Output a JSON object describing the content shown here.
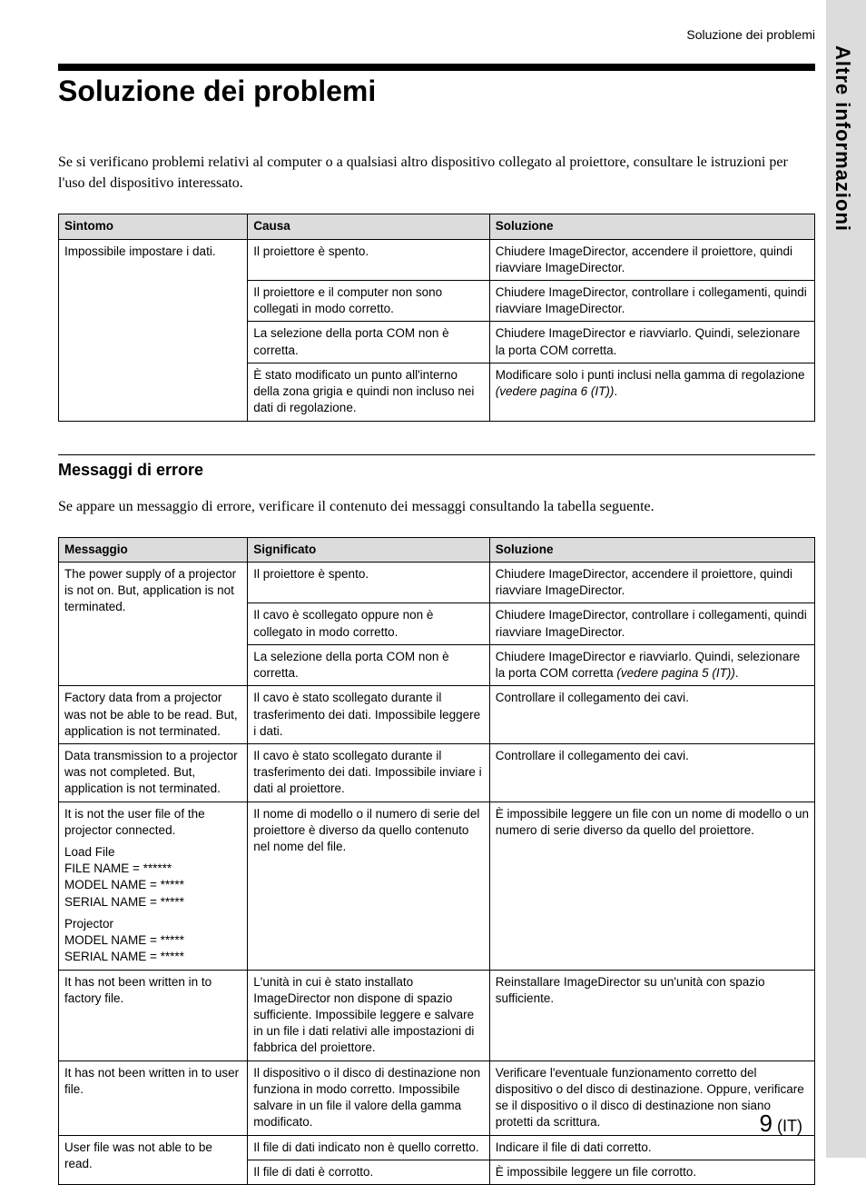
{
  "running_head": "Soluzione dei problemi",
  "side_tab": "Altre informazioni",
  "main_title": "Soluzione dei problemi",
  "intro": "Se si verificano problemi relativi al computer o a qualsiasi altro dispositivo collegato al proiettore, consultare le istruzioni per l'uso del dispositivo interessato.",
  "table1": {
    "headers": {
      "a": "Sintomo",
      "b": "Causa",
      "c": "Soluzione"
    },
    "r1": {
      "a": "Impossibile impostare i dati.",
      "b": "Il proiettore è spento.",
      "c": "Chiudere ImageDirector, accendere il proiettore, quindi riavviare ImageDirector."
    },
    "r2": {
      "b": "Il proiettore e il computer non sono collegati in modo corretto.",
      "c": "Chiudere ImageDirector, controllare i collegamenti, quindi riavviare ImageDirector."
    },
    "r3": {
      "b": "La selezione della porta COM non è corretta.",
      "c": "Chiudere ImageDirector e riavviarlo. Quindi, selezionare la porta COM corretta."
    },
    "r4": {
      "b": "È stato modificato un punto all'interno della zona grigia e quindi non incluso nei dati di regolazione.",
      "c_pre": "Modificare solo i punti inclusi nella gamma di regolazione ",
      "c_it": "(vedere pagina 6 (IT))",
      "c_post": "."
    }
  },
  "sub_title": "Messaggi di errore",
  "sub_intro": "Se appare un messaggio di errore, verificare il contenuto dei messaggi consultando la tabella seguente.",
  "table2": {
    "headers": {
      "a": "Messaggio",
      "b": "Significato",
      "c": "Soluzione"
    },
    "r1": {
      "a": "The power supply of a projector is not on. But, application is not terminated.",
      "b": "Il proiettore è spento.",
      "c": "Chiudere ImageDirector, accendere il proiettore, quindi riavviare ImageDirector."
    },
    "r2": {
      "b": "Il cavo è scollegato oppure non è collegato in modo corretto.",
      "c": "Chiudere ImageDirector, controllare i collegamenti, quindi riavviare ImageDirector."
    },
    "r3": {
      "b": "La selezione della porta COM non è corretta.",
      "c_pre": "Chiudere ImageDirector e riavviarlo. Quindi, selezionare la porta COM corretta ",
      "c_it": "(vedere pagina 5 (IT))",
      "c_post": "."
    },
    "r4": {
      "a": "Factory data from a projector was not be able to be read. But, application is not terminated.",
      "b": "Il cavo è stato scollegato durante il trasferimento dei dati. Impossibile leggere i dati.",
      "c": "Controllare il collegamento dei cavi."
    },
    "r5": {
      "a": "Data transmission to a projector was not completed. But, application is not terminated.",
      "b": "Il cavo è stato scollegato durante il trasferimento dei dati. Impossibile inviare i dati al proiettore.",
      "c": "Controllare il collegamento dei cavi."
    },
    "r6": {
      "a_p1": "It is not the user file of the projector connected.",
      "a_p2": "Load File\nFILE NAME = ******\nMODEL NAME = *****\nSERIAL NAME = *****",
      "a_p3": "Projector\nMODEL NAME = *****\nSERIAL NAME = *****",
      "b": "Il nome di modello o il numero di serie del proiettore è diverso da quello contenuto nel nome del file.",
      "c": "È impossibile leggere un file con un nome di modello o un numero di serie diverso da quello del proiettore."
    },
    "r7": {
      "a": "It has not been written in to factory file.",
      "b": "L'unità in cui è stato installato ImageDirector non dispone di spazio sufficiente. Impossibile leggere e salvare in un file i dati relativi alle impostazioni di fabbrica del proiettore.",
      "c": "Reinstallare ImageDirector su un'unità con spazio sufficiente."
    },
    "r8": {
      "a": "It has not been written in to user file.",
      "b": "Il dispositivo o il disco di destinazione non funziona in modo corretto. Impossibile salvare in un file il valore della gamma modificato.",
      "c": "Verificare l'eventuale funzionamento corretto del dispositivo o del disco di destinazione. Oppure, verificare se il dispositivo o il disco di destinazione non siano protetti da scrittura."
    },
    "r9": {
      "a": "User file was not able to be read.",
      "b": "Il file di dati indicato non è quello corretto.",
      "c": "Indicare il file di dati corretto."
    },
    "r10": {
      "b": "Il file di dati è corrotto.",
      "c": "È impossibile leggere un file corrotto."
    }
  },
  "page_num": {
    "n": "9",
    "suffix": " (IT)"
  }
}
